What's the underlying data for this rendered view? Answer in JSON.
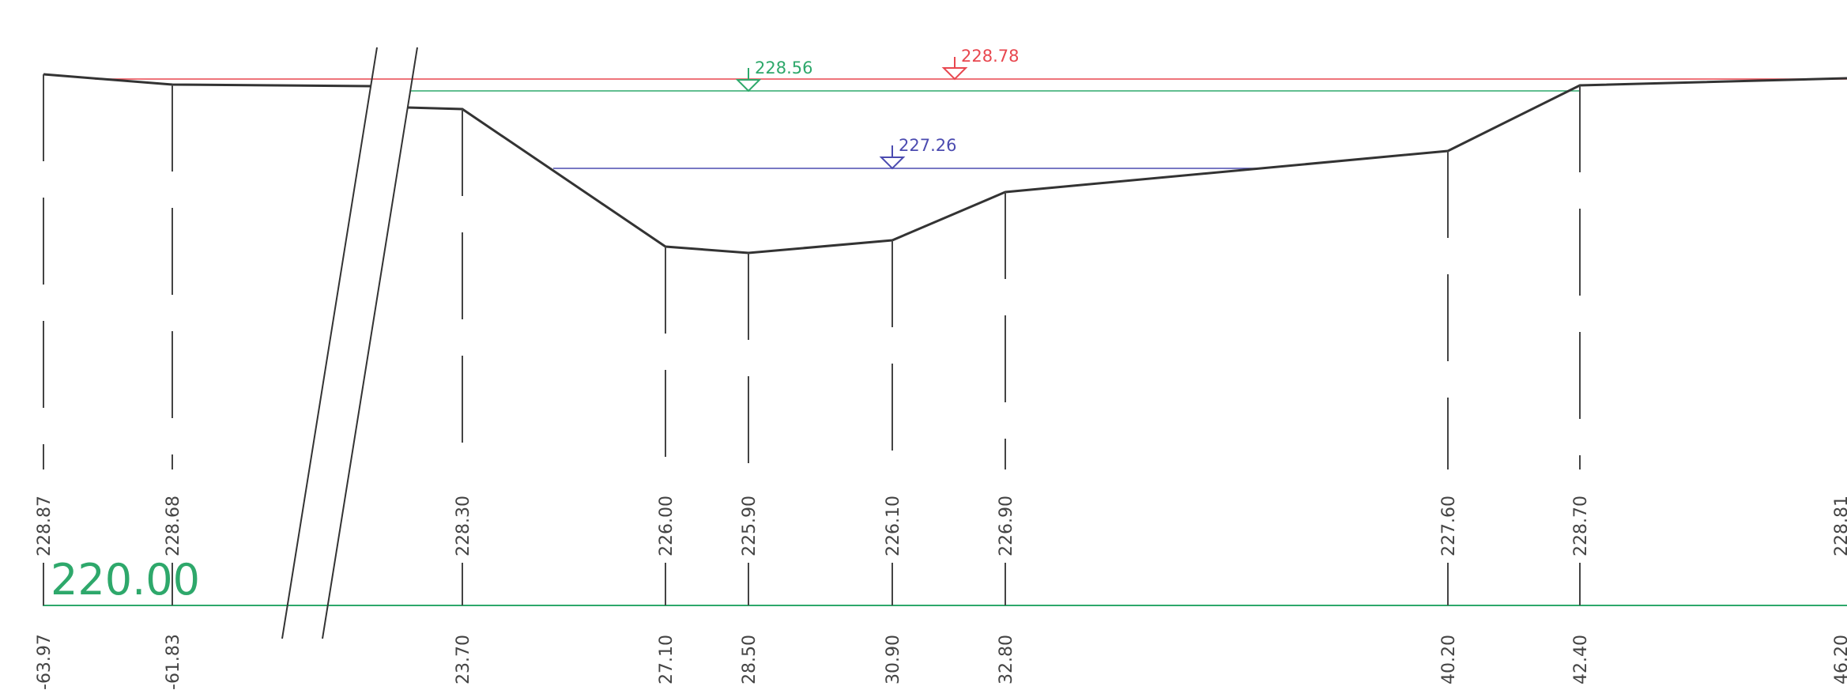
{
  "datum": {
    "label": "220.00",
    "color": "#2ea86b"
  },
  "water_levels": [
    {
      "name": "red-water-level",
      "value": "228.78",
      "color": "#e8474f"
    },
    {
      "name": "green-water-level",
      "value": "228.56",
      "color": "#2ea86b"
    },
    {
      "name": "blue-water-level",
      "value": "227.26",
      "color": "#4b4bb0"
    }
  ],
  "stations": [
    {
      "elevation": "228.87",
      "offset": "-63.97"
    },
    {
      "elevation": "228.68",
      "offset": "-61.83"
    },
    {
      "elevation": "228.30",
      "offset": "23.70"
    },
    {
      "elevation": "226.00",
      "offset": "27.10"
    },
    {
      "elevation": "225.90",
      "offset": "28.50"
    },
    {
      "elevation": "226.10",
      "offset": "30.90"
    },
    {
      "elevation": "226.90",
      "offset": "32.80"
    },
    {
      "elevation": "227.60",
      "offset": "40.20"
    },
    {
      "elevation": "228.70",
      "offset": "42.40"
    },
    {
      "elevation": "228.81",
      "offset": "46.20"
    }
  ]
}
